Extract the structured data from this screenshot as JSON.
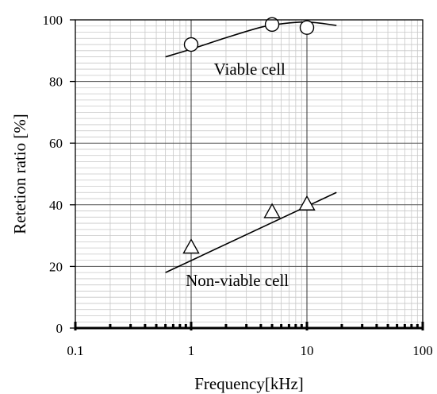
{
  "chart_data": {
    "type": "scatter",
    "title": "",
    "xlabel": "Frequency[kHz]",
    "ylabel": "Retetion ratio [%]",
    "xscale": "log",
    "xlim": [
      0.1,
      100
    ],
    "ylim": [
      0,
      100
    ],
    "grid": true,
    "xticks": [
      0.1,
      1,
      10,
      100
    ],
    "xtick_labels": [
      "0.1",
      "1",
      "10",
      "100"
    ],
    "yticks": [
      0,
      20,
      40,
      60,
      80,
      100
    ],
    "ytick_labels": [
      "0",
      "20",
      "40",
      "60",
      "80",
      "100"
    ],
    "series": [
      {
        "marker": "circle",
        "x": [
          1,
          5,
          10
        ],
        "y": [
          92,
          98.5,
          97.5
        ],
        "fit": {
          "x": [
            0.6,
            1,
            2,
            4,
            6,
            10,
            18
          ],
          "y": [
            88,
            90.5,
            94.2,
            97.6,
            98.7,
            99.3,
            98.2
          ]
        }
      },
      {
        "marker": "triangle",
        "x": [
          1,
          5,
          10
        ],
        "y": [
          26,
          37.5,
          40
        ],
        "fit": {
          "x": [
            0.6,
            18
          ],
          "y": [
            18,
            44
          ]
        }
      }
    ],
    "annotations": [
      {
        "text": "Viable cell",
        "x": 3.2,
        "y": 84
      },
      {
        "text": "Non-viable cell",
        "x": 2.5,
        "y": 15.5
      }
    ]
  }
}
